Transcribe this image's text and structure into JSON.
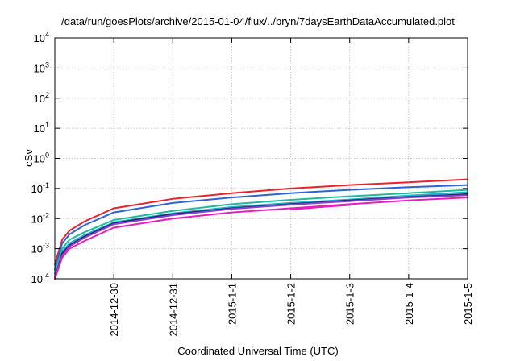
{
  "chart_data": {
    "type": "line",
    "title": "/data/run/goesPlots/archive/2015-01-04/flux/../bryn/7daysEarthDataAccumulated.plot",
    "xlabel": "Coordinated Universal Time (UTC)",
    "ylabel": "cSv",
    "yscale": "log",
    "ylim": [
      0.0001,
      10000
    ],
    "y_ticks": [
      {
        "value": 0.0001,
        "base": "10",
        "exp": "-4"
      },
      {
        "value": 0.001,
        "base": "10",
        "exp": "-3"
      },
      {
        "value": 0.01,
        "base": "10",
        "exp": "-2"
      },
      {
        "value": 0.1,
        "base": "10",
        "exp": "-1"
      },
      {
        "value": 1,
        "base": "10",
        "exp": "0"
      },
      {
        "value": 10,
        "base": "10",
        "exp": "1"
      },
      {
        "value": 100,
        "base": "10",
        "exp": "2"
      },
      {
        "value": 1000,
        "base": "10",
        "exp": "3"
      },
      {
        "value": 10000,
        "base": "10",
        "exp": "4"
      }
    ],
    "xlim": [
      "2014-12-29",
      "2015-01-05"
    ],
    "x_ticks": [
      "2014-12-30",
      "2014-12-31",
      "2015-1-1",
      "2015-1-2",
      "2015-1-3",
      "2015-1-4",
      "2015-1-5"
    ],
    "grid": true,
    "legend": "none",
    "series": [
      {
        "color": "#e8232a",
        "x": [
          "2014-12-29",
          "2014-12-29 03:00",
          "2014-12-29 06:00",
          "2014-12-29 12:00",
          "2014-12-30",
          "2014-12-31",
          "2015-01-01",
          "2015-01-02",
          "2015-01-03",
          "2015-01-04",
          "2015-01-05"
        ],
        "values": [
          0.0003,
          0.002,
          0.004,
          0.008,
          0.022,
          0.045,
          0.07,
          0.1,
          0.13,
          0.16,
          0.2
        ]
      },
      {
        "color": "#2e62d6",
        "x": [
          "2014-12-29",
          "2014-12-29 03:00",
          "2014-12-29 06:00",
          "2014-12-29 12:00",
          "2014-12-30",
          "2014-12-31",
          "2015-01-01",
          "2015-01-02",
          "2015-01-03",
          "2015-01-04",
          "2015-01-05"
        ],
        "values": [
          0.0002,
          0.0015,
          0.003,
          0.006,
          0.016,
          0.033,
          0.05,
          0.07,
          0.09,
          0.11,
          0.13
        ]
      },
      {
        "color": "#22b99a",
        "x": [
          "2014-12-29",
          "2014-12-29 03:00",
          "2014-12-29 06:00",
          "2014-12-29 12:00",
          "2014-12-30",
          "2014-12-31",
          "2015-01-01",
          "2015-01-02",
          "2015-01-03",
          "2015-01-04",
          "2015-01-05"
        ],
        "values": [
          0.00015,
          0.001,
          0.002,
          0.0035,
          0.009,
          0.018,
          0.03,
          0.042,
          0.055,
          0.07,
          0.09
        ]
      },
      {
        "color": "#13b5c9",
        "x": [
          "2014-12-29",
          "2014-12-29 03:00",
          "2014-12-29 06:00",
          "2014-12-29 12:00",
          "2014-12-30",
          "2014-12-31",
          "2015-01-01",
          "2015-01-02",
          "2015-01-03",
          "2015-01-04",
          "2015-01-05"
        ],
        "values": [
          0.00012,
          0.0008,
          0.0015,
          0.0028,
          0.0075,
          0.015,
          0.024,
          0.033,
          0.043,
          0.058,
          0.075
        ]
      },
      {
        "color": "#1b1f66",
        "x": [
          "2014-12-29",
          "2014-12-29 03:00",
          "2014-12-29 06:00",
          "2014-12-29 12:00",
          "2014-12-30",
          "2014-12-31",
          "2015-01-01",
          "2015-01-02",
          "2015-01-03",
          "2015-01-04",
          "2015-01-05"
        ],
        "values": [
          0.0001,
          0.0007,
          0.0013,
          0.0025,
          0.007,
          0.014,
          0.022,
          0.03,
          0.04,
          0.052,
          0.065
        ]
      },
      {
        "color": "#8b3fd0",
        "x": [
          "2014-12-29",
          "2014-12-29 03:00",
          "2014-12-29 06:00",
          "2014-12-29 12:00",
          "2014-12-30",
          "2014-12-31",
          "2015-01-01",
          "2015-01-02",
          "2015-01-03",
          "2015-01-04",
          "2015-01-05"
        ],
        "values": [
          0.0001,
          0.0006,
          0.0012,
          0.0023,
          0.0065,
          0.013,
          0.021,
          0.029,
          0.038,
          0.05,
          0.06
        ]
      },
      {
        "color": "#e61ec0",
        "x": [
          "2014-12-29",
          "2014-12-29 03:00",
          "2014-12-29 06:00",
          "2014-12-29 12:00",
          "2014-12-30",
          "2014-12-31",
          "2015-01-01",
          "2015-01-02",
          "2015-01-03",
          "2015-01-04",
          "2015-01-05"
        ],
        "values": [
          0.0001,
          0.0005,
          0.001,
          0.0018,
          0.005,
          0.01,
          0.016,
          0.022,
          0.03,
          0.04,
          0.05
        ]
      },
      {
        "color": "#e61ec0",
        "x": [
          "2015-01-02",
          "2015-01-02 12:00",
          "2015-01-03"
        ],
        "values": [
          0.02,
          0.024,
          0.028
        ]
      }
    ]
  }
}
